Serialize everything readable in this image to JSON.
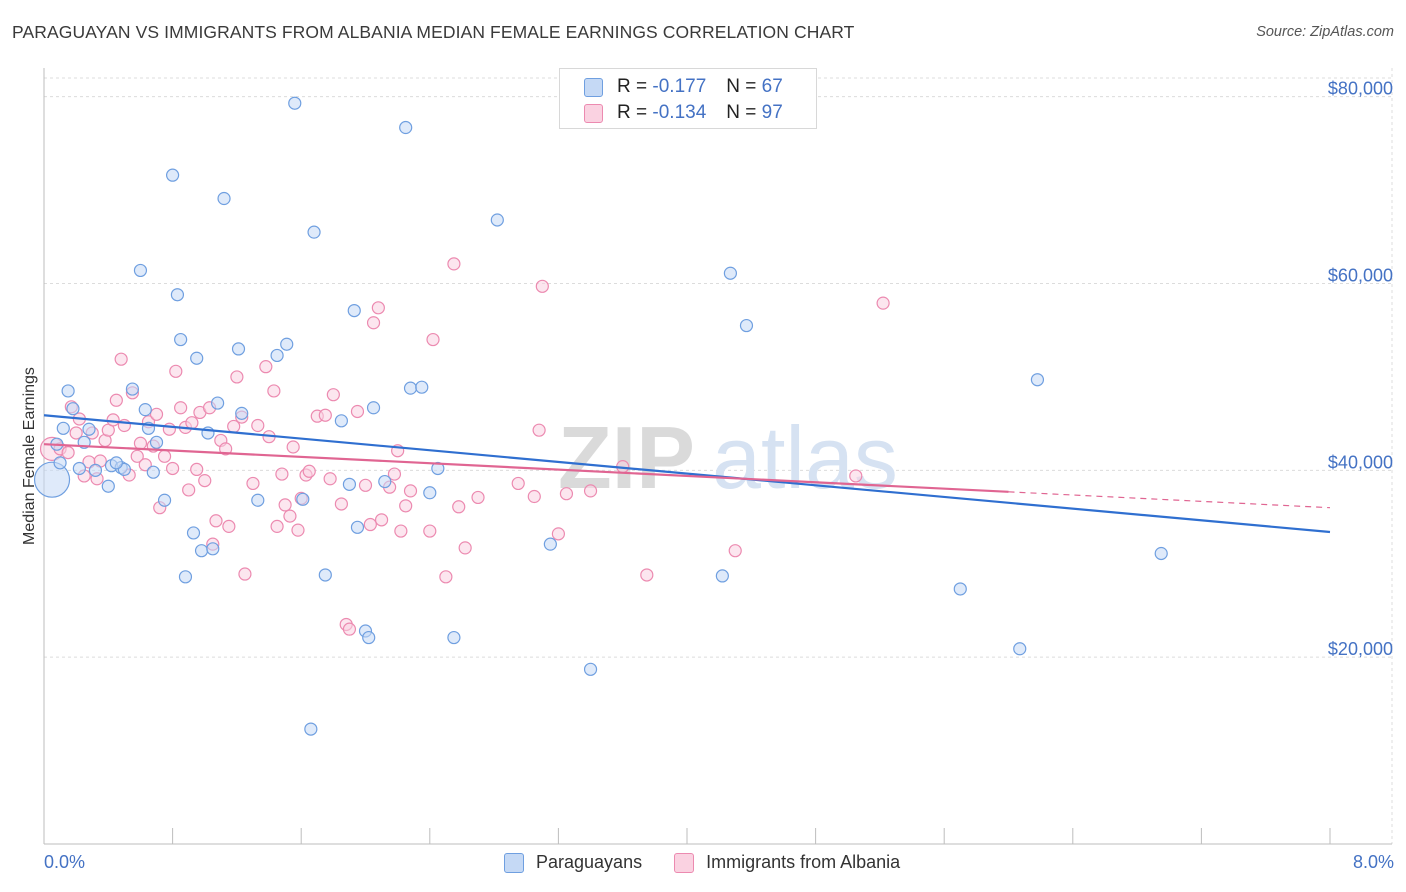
{
  "title": "PARAGUAYAN VS IMMIGRANTS FROM ALBANIA MEDIAN FEMALE EARNINGS CORRELATION CHART",
  "source": "Source: ZipAtlas.com",
  "colors": {
    "blue": "#6f9fe0",
    "blue_fill": "#c5d9f5",
    "blue_line": "#2f6fd0",
    "pink": "#ec8ab0",
    "pink_fill": "#fad2e1",
    "pink_line": "#e06592",
    "axis_text": "#4472c4",
    "grid": "#dcdcdc"
  },
  "watermark": {
    "part1": "ZIP",
    "part2": "atlas"
  },
  "stats": {
    "series1": {
      "r_label": "R =",
      "r_value": "-0.177",
      "n_label": "N =",
      "n_value": "67"
    },
    "series2": {
      "r_label": "R =",
      "r_value": "-0.134",
      "n_label": "N =",
      "n_value": "97"
    }
  },
  "chart_data": {
    "type": "scatter",
    "title": "PARAGUAYAN VS IMMIGRANTS FROM ALBANIA MEDIAN FEMALE EARNINGS CORRELATION CHART",
    "xlabel": "",
    "ylabel": "Median Female Earnings",
    "xlim": [
      0.0,
      8.0
    ],
    "ylim": [
      0,
      82000
    ],
    "x_tick_labels": [
      "0.0%",
      "8.0%"
    ],
    "y_ticks": [
      20000,
      40000,
      60000,
      80000
    ],
    "y_tick_labels": [
      "$20,000",
      "$40,000",
      "$60,000",
      "$80,000"
    ],
    "grid": true,
    "legend": [
      "Paraguayans",
      "Immigrants from Albania"
    ],
    "series": [
      {
        "name": "Paraguayans",
        "color": "#6f9fe0",
        "trend": {
          "x": [
            0.0,
            8.0
          ],
          "y": [
            45900,
            33400
          ]
        },
        "points": [
          [
            0.05,
            39000,
            28
          ],
          [
            0.08,
            42800,
            12
          ],
          [
            0.1,
            40800,
            12
          ],
          [
            0.12,
            44500,
            12
          ],
          [
            0.15,
            48500,
            12
          ],
          [
            0.18,
            46600,
            12
          ],
          [
            0.22,
            40200,
            12
          ],
          [
            0.25,
            43000,
            12
          ],
          [
            0.28,
            44400,
            12
          ],
          [
            0.4,
            38300,
            12
          ],
          [
            0.42,
            40500,
            12
          ],
          [
            0.48,
            40300,
            12
          ],
          [
            0.5,
            40100,
            12
          ],
          [
            0.55,
            48700,
            12
          ],
          [
            0.6,
            61400,
            12
          ],
          [
            0.63,
            46500,
            12
          ],
          [
            0.65,
            44500,
            12
          ],
          [
            0.7,
            43000,
            12
          ],
          [
            0.75,
            36800,
            12
          ],
          [
            0.8,
            71600,
            12
          ],
          [
            0.83,
            58800,
            12
          ],
          [
            0.85,
            54000,
            12
          ],
          [
            0.88,
            28600,
            12
          ],
          [
            0.93,
            33300,
            12
          ],
          [
            0.95,
            52000,
            12
          ],
          [
            0.98,
            31400,
            12
          ],
          [
            1.02,
            44000,
            12
          ],
          [
            1.05,
            31600,
            12
          ],
          [
            1.08,
            47200,
            12
          ],
          [
            1.12,
            69100,
            12
          ],
          [
            1.21,
            53000,
            12
          ],
          [
            1.23,
            46100,
            12
          ],
          [
            1.33,
            36800,
            12
          ],
          [
            1.45,
            52300,
            12
          ],
          [
            1.51,
            53500,
            12
          ],
          [
            1.56,
            79300,
            12
          ],
          [
            1.61,
            36900,
            12
          ],
          [
            1.66,
            12300,
            12
          ],
          [
            1.68,
            65500,
            12
          ],
          [
            1.75,
            28800,
            12
          ],
          [
            1.85,
            45300,
            12
          ],
          [
            1.9,
            38500,
            12
          ],
          [
            1.93,
            57100,
            12
          ],
          [
            1.95,
            33900,
            12
          ],
          [
            2.0,
            22800,
            12
          ],
          [
            2.02,
            22100,
            12
          ],
          [
            2.05,
            46700,
            12
          ],
          [
            2.12,
            38800,
            12
          ],
          [
            2.25,
            76700,
            12
          ],
          [
            2.28,
            48800,
            12
          ],
          [
            2.35,
            48900,
            12
          ],
          [
            2.4,
            37600,
            12
          ],
          [
            2.45,
            40200,
            12
          ],
          [
            2.55,
            22100,
            12
          ],
          [
            2.82,
            66800,
            12
          ],
          [
            3.15,
            32100,
            12
          ],
          [
            3.4,
            18700,
            12
          ],
          [
            4.22,
            28700,
            12
          ],
          [
            4.27,
            61100,
            12
          ],
          [
            4.37,
            55500,
            12
          ],
          [
            5.7,
            27300,
            12
          ],
          [
            6.07,
            20900,
            12
          ],
          [
            6.18,
            49700,
            12
          ],
          [
            6.95,
            31100,
            12
          ],
          [
            0.68,
            39800,
            12
          ],
          [
            0.32,
            40000,
            12
          ],
          [
            0.45,
            40800,
            12
          ]
        ]
      },
      {
        "name": "Immigrants from Albania",
        "color": "#ec8ab0",
        "trend": {
          "x": [
            0.0,
            6.0
          ],
          "y": [
            42800,
            37700
          ]
        },
        "trend_dashed": {
          "x": [
            6.0,
            8.0
          ],
          "y": [
            37700,
            36000
          ]
        },
        "points": [
          [
            0.05,
            42300,
            16
          ],
          [
            0.1,
            42300,
            12
          ],
          [
            0.15,
            41900,
            12
          ],
          [
            0.17,
            46800,
            12
          ],
          [
            0.2,
            44000,
            12
          ],
          [
            0.22,
            45500,
            12
          ],
          [
            0.25,
            39400,
            12
          ],
          [
            0.28,
            40900,
            12
          ],
          [
            0.3,
            44000,
            12
          ],
          [
            0.33,
            39100,
            12
          ],
          [
            0.35,
            41000,
            12
          ],
          [
            0.38,
            43200,
            12
          ],
          [
            0.4,
            44300,
            12
          ],
          [
            0.43,
            45400,
            12
          ],
          [
            0.45,
            47500,
            12
          ],
          [
            0.48,
            51900,
            12
          ],
          [
            0.5,
            44800,
            12
          ],
          [
            0.53,
            39500,
            12
          ],
          [
            0.55,
            48300,
            12
          ],
          [
            0.58,
            41500,
            12
          ],
          [
            0.6,
            42900,
            12
          ],
          [
            0.63,
            40600,
            12
          ],
          [
            0.65,
            45200,
            12
          ],
          [
            0.68,
            42600,
            12
          ],
          [
            0.7,
            46000,
            12
          ],
          [
            0.72,
            36000,
            12
          ],
          [
            0.75,
            41500,
            12
          ],
          [
            0.78,
            44400,
            12
          ],
          [
            0.8,
            40200,
            12
          ],
          [
            0.82,
            50600,
            12
          ],
          [
            0.85,
            46700,
            12
          ],
          [
            0.88,
            44600,
            12
          ],
          [
            0.9,
            37900,
            12
          ],
          [
            0.92,
            45100,
            12
          ],
          [
            0.95,
            40100,
            12
          ],
          [
            0.97,
            46200,
            12
          ],
          [
            1.0,
            38900,
            12
          ],
          [
            1.03,
            46700,
            12
          ],
          [
            1.05,
            32100,
            12
          ],
          [
            1.07,
            34600,
            12
          ],
          [
            1.1,
            43200,
            12
          ],
          [
            1.13,
            42300,
            12
          ],
          [
            1.15,
            34000,
            12
          ],
          [
            1.18,
            44700,
            12
          ],
          [
            1.2,
            50000,
            12
          ],
          [
            1.23,
            45700,
            12
          ],
          [
            1.25,
            28900,
            12
          ],
          [
            1.3,
            38600,
            12
          ],
          [
            1.33,
            44800,
            12
          ],
          [
            1.38,
            51100,
            12
          ],
          [
            1.4,
            43600,
            12
          ],
          [
            1.43,
            48500,
            12
          ],
          [
            1.45,
            34000,
            12
          ],
          [
            1.48,
            39600,
            12
          ],
          [
            1.5,
            36300,
            12
          ],
          [
            1.53,
            35100,
            12
          ],
          [
            1.55,
            42500,
            12
          ],
          [
            1.58,
            33600,
            12
          ],
          [
            1.6,
            37000,
            12
          ],
          [
            1.63,
            39500,
            12
          ],
          [
            1.65,
            39900,
            12
          ],
          [
            1.7,
            45800,
            12
          ],
          [
            1.75,
            45900,
            12
          ],
          [
            1.78,
            39100,
            12
          ],
          [
            1.8,
            48100,
            12
          ],
          [
            1.85,
            36400,
            12
          ],
          [
            1.88,
            23500,
            12
          ],
          [
            1.9,
            23000,
            12
          ],
          [
            1.95,
            46300,
            12
          ],
          [
            2.0,
            38400,
            12
          ],
          [
            2.03,
            34200,
            12
          ],
          [
            2.05,
            55800,
            12
          ],
          [
            2.08,
            57400,
            12
          ],
          [
            2.1,
            34700,
            12
          ],
          [
            2.15,
            38200,
            12
          ],
          [
            2.18,
            39600,
            12
          ],
          [
            2.2,
            42100,
            12
          ],
          [
            2.22,
            33500,
            12
          ],
          [
            2.25,
            36200,
            12
          ],
          [
            2.28,
            37800,
            12
          ],
          [
            2.4,
            33500,
            12
          ],
          [
            2.42,
            54000,
            12
          ],
          [
            2.5,
            28600,
            12
          ],
          [
            2.55,
            62100,
            12
          ],
          [
            2.58,
            36100,
            12
          ],
          [
            2.62,
            31700,
            12
          ],
          [
            2.7,
            37100,
            12
          ],
          [
            2.95,
            38600,
            12
          ],
          [
            3.05,
            37200,
            12
          ],
          [
            3.08,
            44300,
            12
          ],
          [
            3.1,
            59700,
            12
          ],
          [
            3.2,
            33200,
            12
          ],
          [
            3.25,
            37500,
            12
          ],
          [
            3.4,
            37800,
            12
          ],
          [
            3.6,
            40400,
            12
          ],
          [
            3.75,
            28800,
            12
          ],
          [
            4.3,
            31400,
            12
          ],
          [
            5.05,
            39400,
            12
          ],
          [
            5.22,
            57900,
            12
          ]
        ]
      }
    ]
  }
}
